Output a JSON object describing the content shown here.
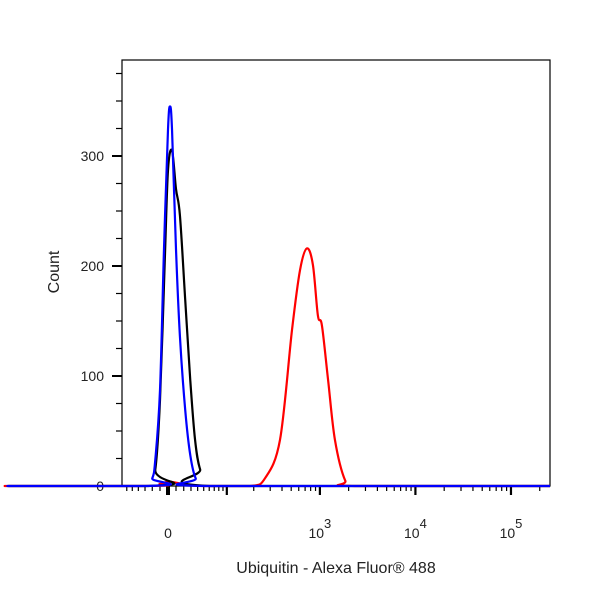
{
  "chart_data": {
    "type": "line",
    "title": "",
    "xlabel": "Ubiquitin - Alexa Fluor® 488",
    "ylabel": "Count",
    "xscale": "biexponential",
    "ylim": [
      0,
      387
    ],
    "grid": false,
    "y_ticks": [
      {
        "value": 0,
        "label": "0"
      },
      {
        "value": 100,
        "label": "100"
      },
      {
        "value": 200,
        "label": "200"
      },
      {
        "value": 300,
        "label": "300"
      }
    ],
    "x_ticks": [
      {
        "value": 0,
        "base": "0",
        "exp": ""
      },
      {
        "value": 1000,
        "base": "10",
        "exp": "3"
      },
      {
        "value": 10000,
        "base": "10",
        "exp": "4"
      },
      {
        "value": 100000,
        "base": "10",
        "exp": "5"
      }
    ],
    "series": [
      {
        "color": "#0000ff",
        "points": [
          [
            -30,
            0
          ],
          [
            -20,
            7
          ],
          [
            -16,
            24
          ],
          [
            -10,
            87
          ],
          [
            -5,
            215
          ],
          [
            0,
            324
          ],
          [
            2.5,
            345
          ],
          [
            5,
            324
          ],
          [
            10,
            215
          ],
          [
            15,
            136
          ],
          [
            22,
            69
          ],
          [
            29,
            28
          ],
          [
            37,
            7
          ],
          [
            52,
            0
          ]
        ]
      },
      {
        "color": "#000000",
        "points": [
          [
            -25,
            0
          ],
          [
            -16,
            15
          ],
          [
            -10,
            78
          ],
          [
            -4,
            205
          ],
          [
            0,
            287
          ],
          [
            5,
            305
          ],
          [
            10,
            270
          ],
          [
            15,
            246
          ],
          [
            22,
            169
          ],
          [
            29,
            96
          ],
          [
            36,
            42
          ],
          [
            44,
            15
          ],
          [
            61,
            0
          ]
        ]
      },
      {
        "color": "#ff0000",
        "points": [
          [
            -40,
            0
          ],
          [
            -10,
            2
          ],
          [
            0,
            4
          ],
          [
            10,
            3
          ],
          [
            25,
            1
          ],
          [
            50,
            0
          ],
          [
            182,
            0
          ],
          [
            264,
            7
          ],
          [
            381,
            42
          ],
          [
            510,
            142
          ],
          [
            618,
            196
          ],
          [
            731,
            216
          ],
          [
            845,
            201
          ],
          [
            953,
            155
          ],
          [
            1050,
            146
          ],
          [
            1220,
            96
          ],
          [
            1437,
            42
          ],
          [
            1840,
            5
          ],
          [
            2318,
            0
          ]
        ]
      }
    ]
  }
}
